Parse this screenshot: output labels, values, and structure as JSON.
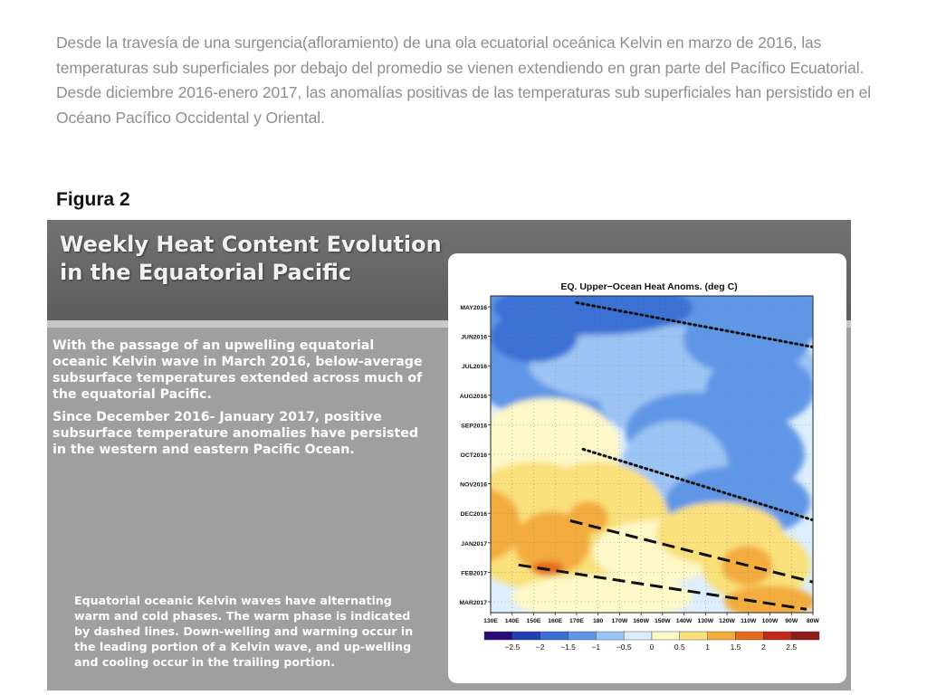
{
  "intro": {
    "text": "Desde la travesía de una surgencia(afloramiento) de una ola ecuatorial  oceánica Kelvin  en marzo de 2016, las temperaturas sub superficiales  por debajo del promedio  se vienen extendiendo en gran parte del Pacífico Ecuatorial. Desde diciembre 2016-enero 2017, las anomalías positivas de las temperaturas sub superficiales han persistido en el Océano Pacífico Occidental y Oriental."
  },
  "figure_label": "Figura 2",
  "slide": {
    "title": "Weekly Heat Content Evolution in the Equatorial Pacific",
    "paragraph1": "With the passage of an upwelling equatorial oceanic Kelvin wave in March 2016, below-average subsurface temperatures extended across much of the equatorial Pacific.",
    "paragraph2": "Since December 2016- January 2017, positive subsurface temperature anomalies have persisted in the western and eastern Pacific Ocean.",
    "note": "Equatorial oceanic Kelvin waves have alternating warm and cold phases. The warm phase is indicated by dashed lines. Down-welling and warming occur in the leading portion of a Kelvin wave, and up-welling and cooling occur in the trailing portion."
  },
  "chart_data": {
    "type": "heatmap",
    "title": "EQ. Upper−Ocean Heat Anoms. (deg C)",
    "x_tick_labels": [
      "130E",
      "140E",
      "150E",
      "160E",
      "170E",
      "180",
      "170W",
      "160W",
      "150W",
      "140W",
      "130W",
      "120W",
      "110W",
      "100W",
      "90W",
      "80W"
    ],
    "y_tick_labels": [
      "MAY2016",
      "JUN2016",
      "JUL2016",
      "AUG2016",
      "SEP2016",
      "OCT2016",
      "NOV2016",
      "DEC2016",
      "JAN2017",
      "FEB2017",
      "MAR2017"
    ],
    "legend": {
      "tick_labels": [
        "−2.5",
        "−2",
        "−1.5",
        "−1",
        "−0.5",
        "0",
        "0.5",
        "1",
        "1.5",
        "2",
        "2.5"
      ],
      "colors": [
        "#2b0a7a",
        "#2040b4",
        "#3a6fd4",
        "#5f96e6",
        "#9cc4f4",
        "#dceefb",
        "#fdf8c8",
        "#f9e07a",
        "#f3ac3c",
        "#e66a1e",
        "#c42818",
        "#8f1d1a"
      ]
    },
    "overlay_lines": [
      {
        "style": "dotted",
        "start": {
          "x": 170,
          "t": 2016.32
        },
        "end": {
          "x": 280,
          "t": 2016.45
        }
      },
      {
        "style": "dotted",
        "start": {
          "x": 173,
          "t": 2016.75
        },
        "end": {
          "x": 281,
          "t": 2016.96
        }
      },
      {
        "style": "dashed",
        "start": {
          "x": 167,
          "t": 2016.96
        },
        "end": {
          "x": 280,
          "t": 2017.14
        }
      },
      {
        "style": "dashed",
        "start": {
          "x": 143,
          "t": 2017.09
        },
        "end": {
          "x": 277,
          "t": 2017.22
        }
      }
    ],
    "x_range": [
      130,
      280
    ],
    "t_range": [
      2016.3,
      2017.23
    ]
  }
}
